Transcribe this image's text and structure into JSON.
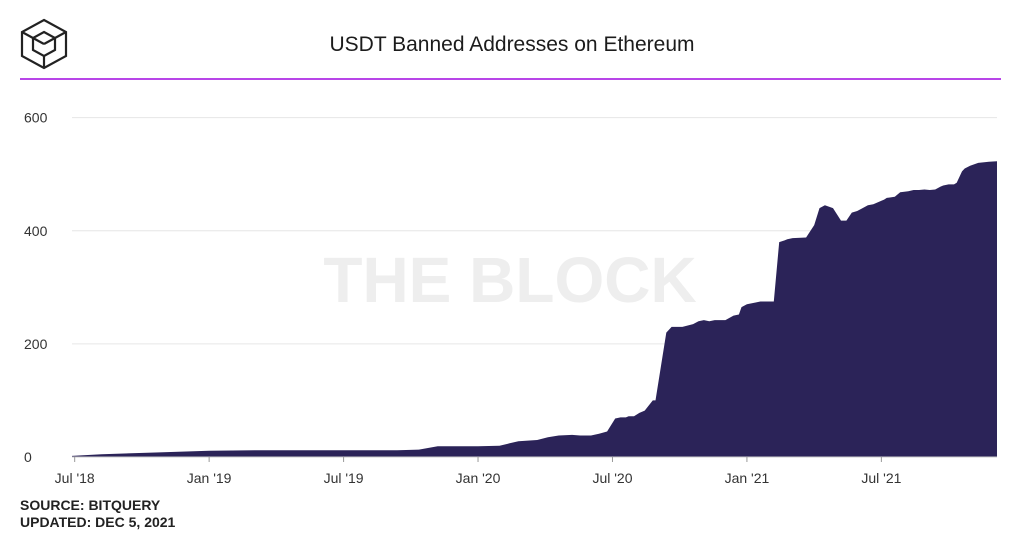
{
  "header": {
    "title": "USDT Banned Addresses on Ethereum",
    "logo_icon": "the-block-cube-icon"
  },
  "watermark": "THE BLOCK",
  "footer": {
    "source": "SOURCE: BITQUERY",
    "updated": "UPDATED: DEC 5, 2021"
  },
  "colors": {
    "area_fill": "#2b2358",
    "title_rule": "#b845e8",
    "grid": "#e6e6e6",
    "watermark": "#eeeeee",
    "text": "#333333"
  },
  "chart_data": {
    "type": "area",
    "title": "USDT Banned Addresses on Ethereum",
    "xlabel": "",
    "ylabel": "",
    "ylim": [
      0,
      640
    ],
    "xlim": [
      2018.49,
      2021.93
    ],
    "yticks": [
      0,
      200,
      400,
      600
    ],
    "ytick_labels": [
      "0",
      "200",
      "400",
      "600"
    ],
    "xticks": [
      2018.5,
      2019.0,
      2019.5,
      2020.0,
      2020.5,
      2021.0,
      2021.5
    ],
    "xtick_labels": [
      "Jul '18",
      "Jan '19",
      "Jul '19",
      "Jan '20",
      "Jul '20",
      "Jan '21",
      "Jul '21"
    ],
    "grid": true,
    "series": [
      {
        "name": "Banned addresses",
        "x": [
          2018.49,
          2018.6,
          2018.8,
          2019.0,
          2019.2,
          2019.4,
          2019.6,
          2019.7,
          2019.78,
          2019.85,
          2020.0,
          2020.08,
          2020.15,
          2020.22,
          2020.26,
          2020.3,
          2020.35,
          2020.38,
          2020.42,
          2020.45,
          2020.48,
          2020.51,
          2020.53,
          2020.55,
          2020.56,
          2020.58,
          2020.6,
          2020.62,
          2020.65,
          2020.66,
          2020.68,
          2020.7,
          2020.72,
          2020.74,
          2020.76,
          2020.8,
          2020.82,
          2020.84,
          2020.86,
          2020.88,
          2020.92,
          2020.95,
          2020.97,
          2020.98,
          2021.0,
          2021.03,
          2021.05,
          2021.07,
          2021.1,
          2021.12,
          2021.14,
          2021.15,
          2021.17,
          2021.22,
          2021.25,
          2021.27,
          2021.29,
          2021.32,
          2021.35,
          2021.37,
          2021.39,
          2021.41,
          2021.43,
          2021.45,
          2021.47,
          2021.5,
          2021.51,
          2021.52,
          2021.55,
          2021.57,
          2021.6,
          2021.62,
          2021.64,
          2021.66,
          2021.68,
          2021.7,
          2021.72,
          2021.73,
          2021.75,
          2021.77,
          2021.78,
          2021.8,
          2021.81,
          2021.83,
          2021.86,
          2021.9,
          2021.93
        ],
        "values": [
          2,
          5,
          8,
          11,
          12,
          12,
          12,
          12,
          13,
          19,
          19,
          20,
          28,
          30,
          35,
          38,
          39,
          38,
          38,
          41,
          45,
          68,
          70,
          70,
          72,
          72,
          78,
          82,
          100,
          100,
          160,
          220,
          230,
          230,
          230,
          235,
          240,
          242,
          240,
          242,
          242,
          250,
          252,
          265,
          270,
          273,
          275,
          275,
          275,
          380,
          383,
          385,
          387,
          388,
          410,
          440,
          445,
          440,
          418,
          418,
          432,
          435,
          440,
          445,
          447,
          453,
          455,
          458,
          460,
          468,
          470,
          472,
          472,
          473,
          472,
          473,
          478,
          480,
          482,
          482,
          485,
          505,
          510,
          515,
          520,
          522,
          523
        ]
      }
    ]
  }
}
